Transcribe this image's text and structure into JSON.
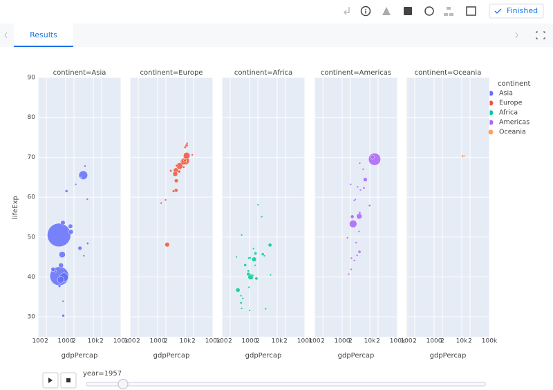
{
  "toolbar": {
    "status": "Finished"
  },
  "tabs": [
    "Results"
  ],
  "slider": {
    "label": "year=1957"
  },
  "chart_data": {
    "type": "scatter",
    "x_label": "gdpPercap",
    "y_label": "lifeExp",
    "legend_title": "continent",
    "log_x": true,
    "grid": true,
    "legend": "right",
    "xlim": [
      100,
      100000
    ],
    "xticks": [
      100,
      {
        "value": 200,
        "label": "2"
      },
      1000,
      {
        "value": 2000,
        "label": "2"
      },
      {
        "value": 10000,
        "label": "10k"
      },
      {
        "value": 20000,
        "label": "2"
      },
      {
        "value": 100000,
        "label": "100k"
      }
    ],
    "ylim": [
      25,
      90
    ],
    "yticks": [
      30,
      40,
      50,
      60,
      70,
      80,
      90
    ],
    "series": [
      {
        "name": "Asia",
        "facet_title": "continent=Asia",
        "color": "#636efa",
        "x": [
          575,
          590,
          858,
          4318,
          747,
          662,
          1548,
          793,
          1488,
          676,
          3290,
          821,
          4545,
          5000,
          3629,
          2315,
          6230,
          350,
          434,
          597,
          804,
          1073,
          6089
        ],
        "values": [
          50.5,
          40.2,
          39.9,
          65.5,
          45.6,
          39.3,
          51.3,
          53.6,
          52.7,
          42.9,
          47.2,
          30.3,
          45.3,
          67.8,
          64.8,
          63.2,
          48.4,
          41.9,
          41.4,
          37.7,
          33.9,
          61.5,
          59.5
        ],
        "sizes": [
          637,
          409,
          90,
          91,
          46,
          51,
          26,
          24,
          23,
          28,
          19,
          9,
          4.4,
          1.9,
          2.7,
          1.4,
          6.6,
          21,
          5.3,
          9.4,
          5.5,
          9.1,
          1.6
        ]
      },
      {
        "name": "Europe",
        "facet_title": "continent=Europe",
        "color": "#ef553b",
        "x": [
          1942,
          8843,
          9715,
          3009,
          8663,
          10188,
          6249,
          11276,
          11654,
          4338,
          3775,
          4564,
          2218,
          11283,
          9911,
          4649,
          17910,
          1353,
          4916,
          4734,
          6040,
          8257
        ],
        "values": [
          59.3,
          67.5,
          69.2,
          66.6,
          68.9,
          69.1,
          67.8,
          72.99,
          73.5,
          65.8,
          61.5,
          66.7,
          48.1,
          70.4,
          72.5,
          61.7,
          70.6,
          58.5,
          67.9,
          64.1,
          66.4,
          69.0
        ],
        "sizes": [
          1.5,
          7.0,
          9.0,
          7.7,
          44,
          71,
          49,
          11,
          3.5,
          28,
          8.8,
          29,
          25,
          51,
          7.4,
          17,
          5,
          3.1,
          8.1,
          17.8,
          9.8,
          9.5
        ]
      },
      {
        "name": "Africa",
        "facet_title": "continent=Africa",
        "color": "#00cc96",
        "x": [
          1459,
          1100,
          379,
          5487,
          906,
          1642,
          3014,
          1770,
          698,
          948,
          908,
          1044,
          495,
          1589,
          1004,
          5788,
          3448,
          336,
          1395,
          3827,
          520,
          490,
          959,
          576,
          1313,
          519,
          2770,
          2035
        ],
        "values": [
          44.4,
          40.0,
          36.7,
          47.99,
          40.7,
          45.9,
          45.7,
          39.6,
          42.97,
          44.7,
          41.5,
          44.8,
          33.5,
          42.9,
          31.6,
          40.5,
          45.3,
          45.0,
          47.1,
          31.99,
          32.1,
          35.3,
          37.4,
          34.6,
          40.4,
          50.5,
          55.1,
          58.1
        ],
        "sizes": [
          25,
          37,
          22,
          16,
          15,
          11,
          10,
          11,
          10,
          7,
          6.4,
          6.4,
          7.0,
          5.0,
          2.3,
          0.4,
          1.2,
          0.8,
          3.9,
          4.6,
          0.3,
          4.0,
          2.9,
          2.9,
          5.4,
          3.6,
          0.3,
          0.6
        ]
      },
      {
        "name": "Americas",
        "facet_title": "continent=Americas",
        "color": "#ab63fa",
        "x": [
          14847,
          2487,
          4131,
          6857,
          12490,
          2324,
          4246,
          4316,
          9802,
          6092,
          2127,
          1727,
          2750,
          4086,
          1544,
          2174,
          5716,
          4333,
          3630,
          3197,
          3458,
          2049,
          2991,
          2747,
          4590
        ],
        "values": [
          69.5,
          53.3,
          55.2,
          64.4,
          70.0,
          55.1,
          46.3,
          56.1,
          57.9,
          62.3,
          41.9,
          40.7,
          44.1,
          51.4,
          49.8,
          44.7,
          67.0,
          68.5,
          62.6,
          48.6,
          45.4,
          63.2,
          59.4,
          59.2,
          61.8
        ],
        "sizes": [
          172,
          66,
          36,
          20,
          17,
          15,
          10,
          7,
          6.6,
          6.6,
          3.2,
          3.5,
          3.6,
          4.1,
          2.9,
          1.8,
          2.4,
          2.3,
          1.5,
          2.3,
          1.4,
          1.8,
          1.1,
          0.9,
          0.8
        ]
      },
      {
        "name": "Oceania",
        "facet_title": "continent=Oceania",
        "color": "#ffa15a",
        "x": [
          10950,
          12247
        ],
        "values": [
          70.3,
          70.3
        ],
        "sizes": [
          9.7,
          2.2
        ]
      }
    ]
  }
}
